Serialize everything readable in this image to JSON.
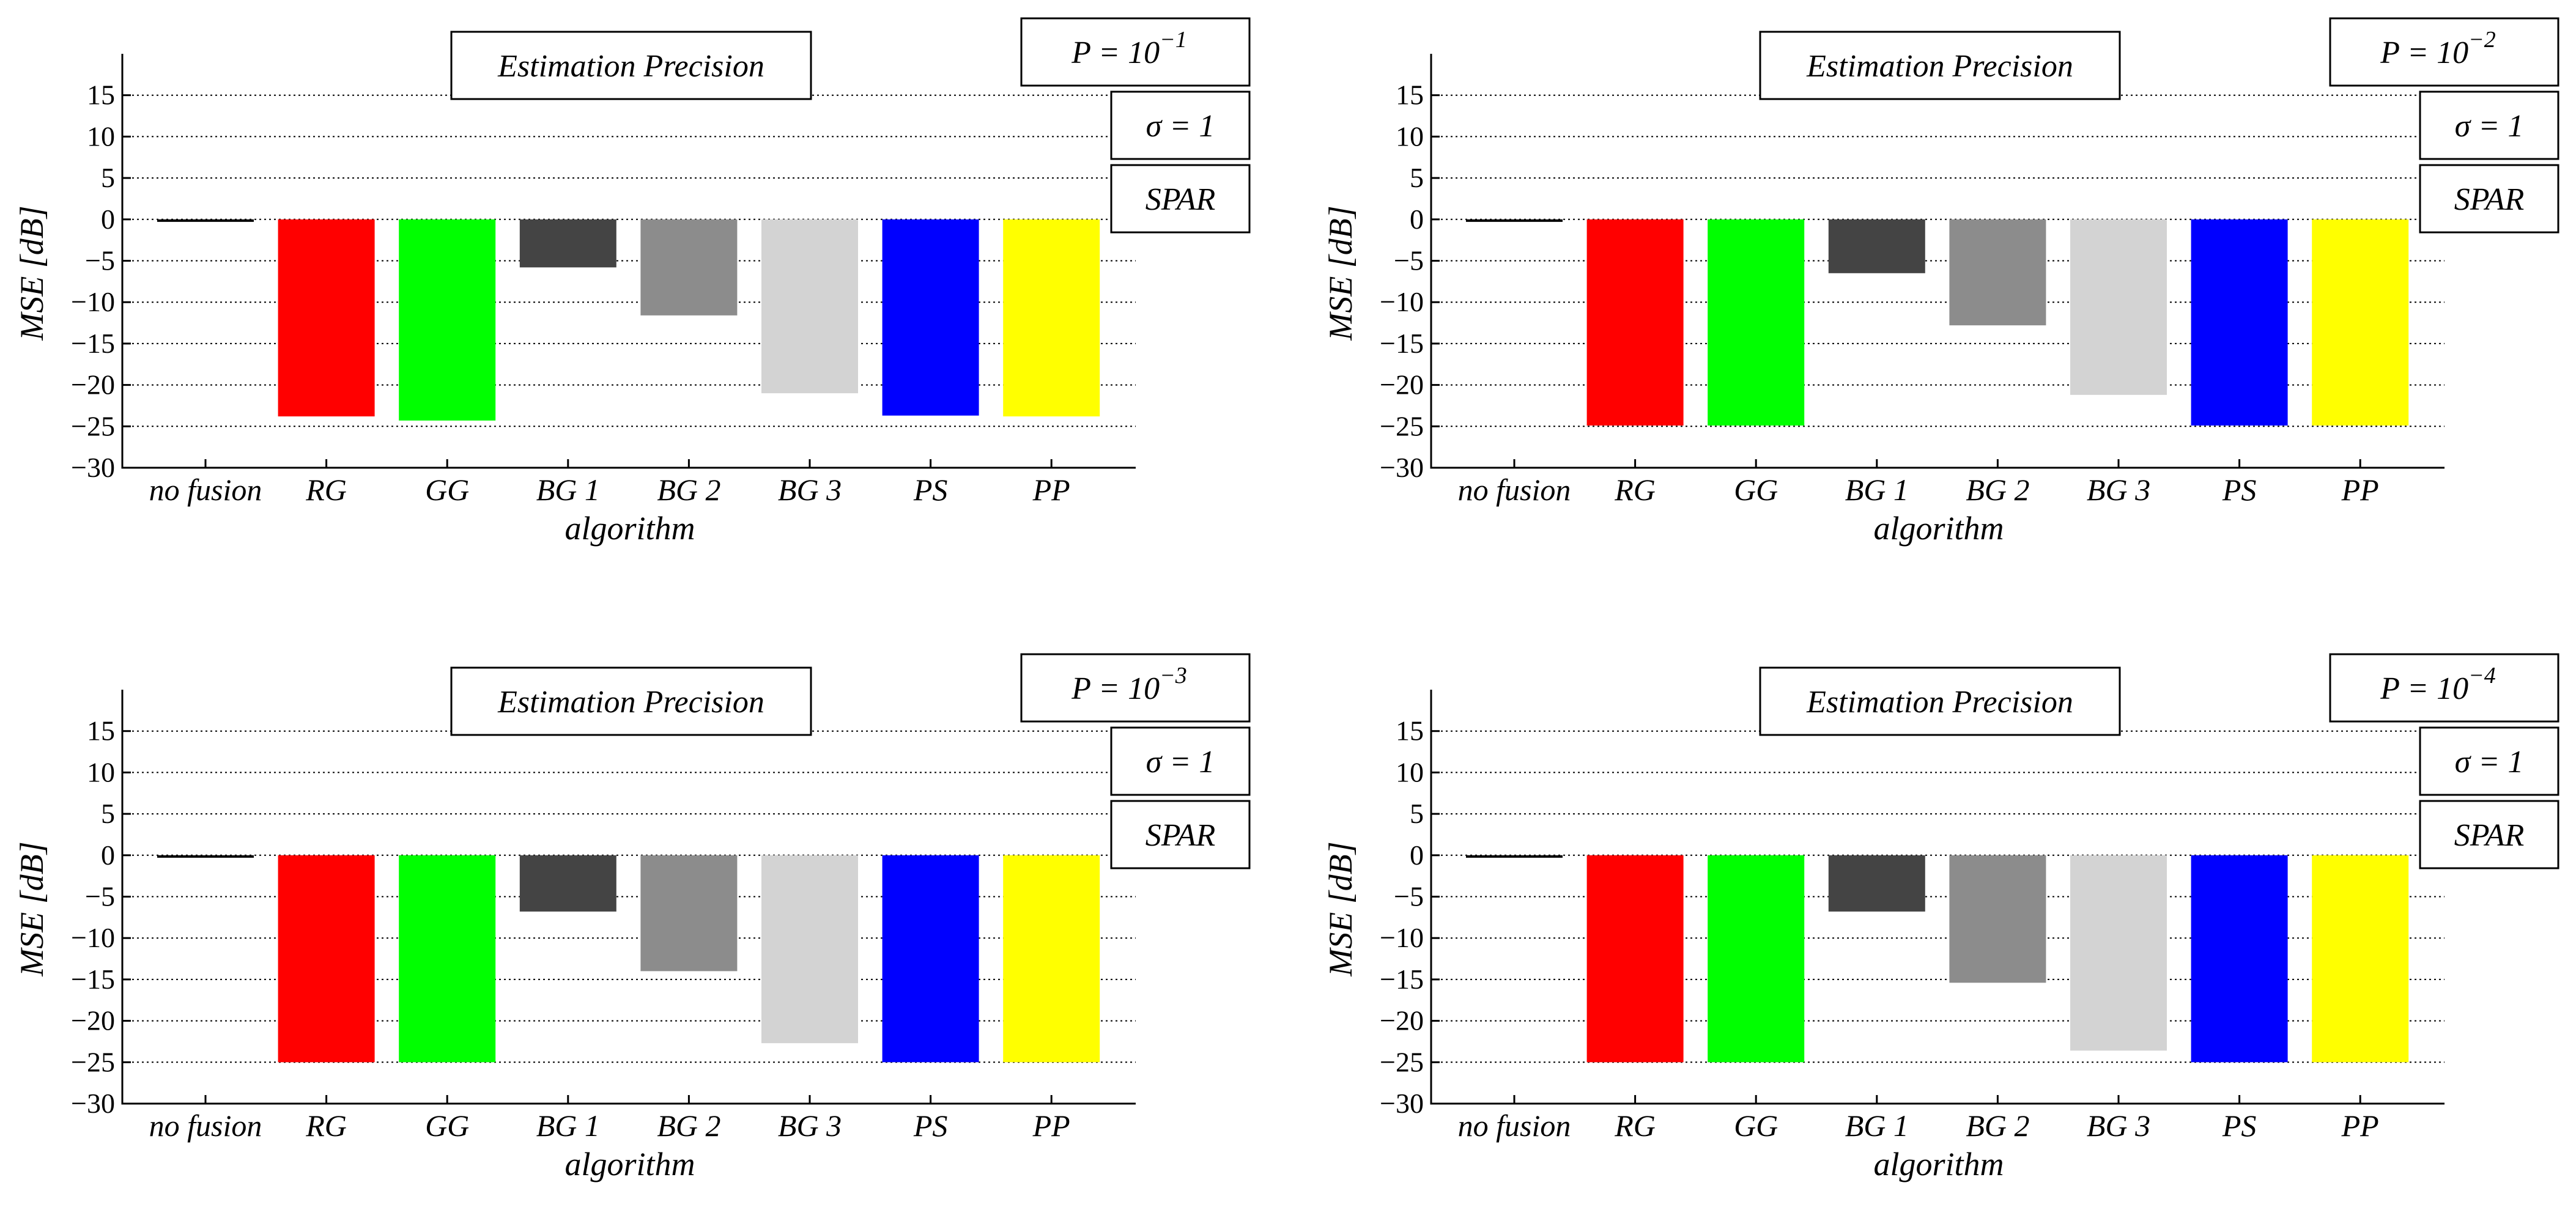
{
  "chart_data": [
    {
      "type": "bar",
      "title": "Estimation Precision",
      "params": {
        "p_prefix": "P = 10",
        "p_exponent": "−1",
        "sigma": "σ = 1",
        "method": "SPAR"
      },
      "xlabel": "algorithm",
      "ylabel": "MSE [dB]",
      "ylim": [
        -30,
        20
      ],
      "yticks": [
        "15",
        "10",
        "5",
        "0",
        "−5",
        "−10",
        "−15",
        "−20",
        "−25",
        "−30"
      ],
      "grid": true,
      "categories": [
        "no fusion",
        "RG",
        "GG",
        "BG 1",
        "BG 2",
        "BG 3",
        "PS",
        "PP"
      ],
      "values": [
        -0.3,
        -23.8,
        -24.3,
        -5.8,
        -11.6,
        -21.0,
        -23.7,
        -23.8
      ],
      "colors": [
        "#000000",
        "#ff0000",
        "#00ff00",
        "#444444",
        "#8c8c8c",
        "#d3d3d3",
        "#0000ff",
        "#ffff00"
      ]
    },
    {
      "type": "bar",
      "title": "Estimation Precision",
      "params": {
        "p_prefix": "P = 10",
        "p_exponent": "−2",
        "sigma": "σ = 1",
        "method": "SPAR"
      },
      "xlabel": "algorithm",
      "ylabel": "MSE [dB]",
      "ylim": [
        -30,
        20
      ],
      "yticks": [
        "15",
        "10",
        "5",
        "0",
        "−5",
        "−10",
        "−15",
        "−20",
        "−25",
        "−30"
      ],
      "grid": true,
      "categories": [
        "no fusion",
        "RG",
        "GG",
        "BG 1",
        "BG 2",
        "BG 3",
        "PS",
        "PP"
      ],
      "values": [
        -0.3,
        -24.9,
        -24.9,
        -6.5,
        -12.8,
        -21.2,
        -24.9,
        -24.9
      ],
      "colors": [
        "#000000",
        "#ff0000",
        "#00ff00",
        "#444444",
        "#8c8c8c",
        "#d3d3d3",
        "#0000ff",
        "#ffff00"
      ]
    },
    {
      "type": "bar",
      "title": "Estimation Precision",
      "params": {
        "p_prefix": "P = 10",
        "p_exponent": "−3",
        "sigma": "σ = 1",
        "method": "SPAR"
      },
      "xlabel": "algorithm",
      "ylabel": "MSE [dB]",
      "ylim": [
        -30,
        20
      ],
      "yticks": [
        "15",
        "10",
        "5",
        "0",
        "−5",
        "−10",
        "−15",
        "−20",
        "−25",
        "−30"
      ],
      "grid": true,
      "categories": [
        "no fusion",
        "RG",
        "GG",
        "BG 1",
        "BG 2",
        "BG 3",
        "PS",
        "PP"
      ],
      "values": [
        -0.3,
        -25.0,
        -25.0,
        -6.8,
        -14.0,
        -22.7,
        -25.0,
        -25.0
      ],
      "colors": [
        "#000000",
        "#ff0000",
        "#00ff00",
        "#444444",
        "#8c8c8c",
        "#d3d3d3",
        "#0000ff",
        "#ffff00"
      ]
    },
    {
      "type": "bar",
      "title": "Estimation Precision",
      "params": {
        "p_prefix": "P = 10",
        "p_exponent": "−4",
        "sigma": "σ = 1",
        "method": "SPAR"
      },
      "xlabel": "algorithm",
      "ylabel": "MSE [dB]",
      "ylim": [
        -30,
        20
      ],
      "yticks": [
        "15",
        "10",
        "5",
        "0",
        "−5",
        "−10",
        "−15",
        "−20",
        "−25",
        "−30"
      ],
      "grid": true,
      "categories": [
        "no fusion",
        "RG",
        "GG",
        "BG 1",
        "BG 2",
        "BG 3",
        "PS",
        "PP"
      ],
      "values": [
        -0.3,
        -25.0,
        -25.0,
        -6.8,
        -15.4,
        -23.6,
        -25.0,
        -25.0
      ],
      "colors": [
        "#000000",
        "#ff0000",
        "#00ff00",
        "#444444",
        "#8c8c8c",
        "#d3d3d3",
        "#0000ff",
        "#ffff00"
      ]
    }
  ]
}
